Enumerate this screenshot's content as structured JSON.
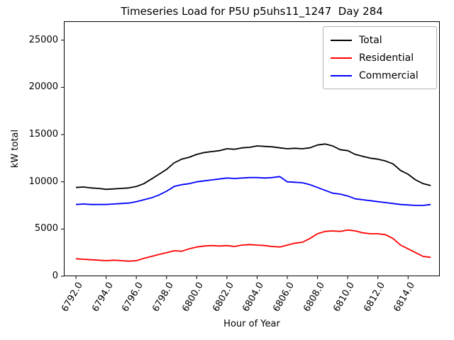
{
  "chart_data": {
    "type": "line",
    "title": "Timeseries Load for P5U p5uhs11_1247  Day 284",
    "xlabel": "Hour of Year",
    "ylabel": "kW total",
    "grid": false,
    "legend_position": "upper right",
    "xlim": [
      6791.2,
      6816.1
    ],
    "ylim": [
      0,
      27000
    ],
    "xtick_values": [
      6792,
      6794,
      6796,
      6798,
      6800,
      6802,
      6804,
      6806,
      6808,
      6810,
      6812,
      6814
    ],
    "xtick_labels": [
      "6792.0",
      "6794.0",
      "6796.0",
      "6798.0",
      "6800.0",
      "6802.0",
      "6804.0",
      "6806.0",
      "6808.0",
      "6810.0",
      "6812.0",
      "6814.0"
    ],
    "ytick_values": [
      0,
      5000,
      10000,
      15000,
      20000,
      25000
    ],
    "ytick_labels": [
      "0",
      "5000",
      "10000",
      "15000",
      "20000",
      "25000"
    ],
    "x": [
      6792.0,
      6792.5,
      6793.0,
      6793.5,
      6794.0,
      6794.5,
      6795.0,
      6795.5,
      6796.0,
      6796.5,
      6797.0,
      6797.5,
      6798.0,
      6798.5,
      6799.0,
      6799.5,
      6800.0,
      6800.5,
      6801.0,
      6801.5,
      6802.0,
      6802.5,
      6803.0,
      6803.5,
      6804.0,
      6804.5,
      6805.0,
      6805.5,
      6806.0,
      6806.5,
      6807.0,
      6807.5,
      6808.0,
      6808.5,
      6809.0,
      6809.5,
      6810.0,
      6810.5,
      6811.0,
      6811.5,
      6812.0,
      6812.5,
      6813.0,
      6813.5,
      6814.0,
      6814.5,
      6815.0,
      6815.5
    ],
    "series": [
      {
        "name": "Total",
        "color": "#000000",
        "values": [
          9400,
          9450,
          9350,
          9300,
          9200,
          9250,
          9300,
          9350,
          9500,
          9800,
          10300,
          10800,
          11300,
          12000,
          12400,
          12600,
          12900,
          13100,
          13200,
          13300,
          13500,
          13450,
          13600,
          13650,
          13800,
          13750,
          13700,
          13600,
          13500,
          13550,
          13500,
          13600,
          13900,
          14000,
          13800,
          13400,
          13300,
          12900,
          12700,
          12500,
          12400,
          12200,
          11900,
          11200,
          10800,
          10200,
          9800,
          9600
        ]
      },
      {
        "name": "Residential",
        "color": "#ff0000",
        "values": [
          1850,
          1800,
          1750,
          1700,
          1650,
          1700,
          1650,
          1600,
          1650,
          1900,
          2100,
          2300,
          2500,
          2700,
          2650,
          2900,
          3100,
          3200,
          3250,
          3200,
          3250,
          3150,
          3300,
          3350,
          3300,
          3250,
          3150,
          3100,
          3300,
          3500,
          3600,
          4000,
          4500,
          4750,
          4800,
          4750,
          4900,
          4800,
          4600,
          4500,
          4500,
          4400,
          4000,
          3300,
          2900,
          2500,
          2100,
          2000
        ]
      },
      {
        "name": "Commercial",
        "color": "#0000ff",
        "values": [
          7600,
          7650,
          7600,
          7600,
          7600,
          7650,
          7700,
          7750,
          7900,
          8100,
          8300,
          8600,
          9000,
          9500,
          9700,
          9800,
          10000,
          10100,
          10200,
          10300,
          10400,
          10350,
          10400,
          10450,
          10450,
          10400,
          10450,
          10550,
          10000,
          9950,
          9900,
          9700,
          9400,
          9100,
          8800,
          8700,
          8500,
          8200,
          8100,
          8000,
          7900,
          7800,
          7700,
          7600,
          7550,
          7500,
          7500,
          7600
        ]
      }
    ]
  }
}
